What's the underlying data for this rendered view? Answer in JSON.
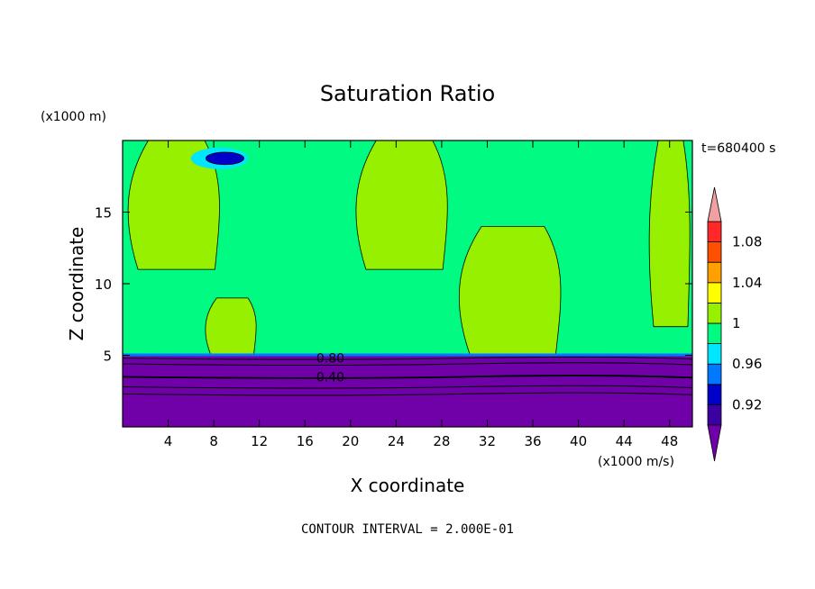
{
  "chart_data": {
    "type": "heatmap",
    "title": "Saturation Ratio",
    "xlabel": "X coordinate",
    "ylabel": "Z coordinate",
    "x_unit": "(x1000 m/s)",
    "y_unit": "(x1000 m)",
    "time_label": "t=680400 s",
    "footer": "CONTOUR INTERVAL = 2.000E-01",
    "xlim": [
      0,
      50
    ],
    "ylim": [
      0,
      20
    ],
    "x_ticks": [
      4,
      8,
      12,
      16,
      20,
      24,
      28,
      32,
      36,
      40,
      44,
      48
    ],
    "y_ticks": [
      5,
      10,
      15
    ],
    "boundary_layer_top": 5.0,
    "contour_labels": [
      {
        "text": "0.80",
        "x": 17.0,
        "y": 4.8
      },
      {
        "text": "0.40",
        "x": 17.0,
        "y": 3.5
      }
    ],
    "colorbar": {
      "labels": [
        "1.08",
        "1.04",
        "1",
        "0.96",
        "0.92"
      ],
      "levels": [
        {
          "range": "< 0.90",
          "color": "#7000a8"
        },
        {
          "range": "0.90-0.92",
          "color": "#3c00a0"
        },
        {
          "range": "0.92-0.94",
          "color": "#0000c8"
        },
        {
          "range": "0.94-0.96",
          "color": "#0078ff"
        },
        {
          "range": "0.96-0.98",
          "color": "#00e6ff"
        },
        {
          "range": "0.98-1.00",
          "color": "#00fa82"
        },
        {
          "range": "1.00-1.02",
          "color": "#96f000"
        },
        {
          "range": "1.02-1.04",
          "color": "#ffff00"
        },
        {
          "range": "1.04-1.06",
          "color": "#ffa000"
        },
        {
          "range": "1.06-1.08",
          "color": "#ff5000"
        },
        {
          "range": "1.08-1.10",
          "color": "#ff2828"
        },
        {
          "range": "> 1.10",
          "color": "#f0a0a0"
        }
      ]
    },
    "regions": [
      {
        "name": "subsaturated-boundary-layer",
        "x": [
          0,
          50
        ],
        "y": [
          0,
          5
        ],
        "value": "< 0.90",
        "color": "#7000a8"
      },
      {
        "name": "near-saturation-background",
        "x": [
          0,
          50
        ],
        "y": [
          5,
          20
        ],
        "value": "0.98-1.00",
        "color": "#00fa82"
      },
      {
        "name": "supersaturated-column-1",
        "x": [
          0,
          9
        ],
        "y": [
          11,
          20
        ],
        "value": "1.00-1.02",
        "color": "#96f000"
      },
      {
        "name": "supersaturated-column-2",
        "x": [
          7,
          12
        ],
        "y": [
          5,
          9
        ],
        "value": "1.00-1.02",
        "color": "#96f000"
      },
      {
        "name": "supersaturated-column-3",
        "x": [
          20,
          29
        ],
        "y": [
          11,
          20
        ],
        "value": "1.00-1.02",
        "color": "#96f000"
      },
      {
        "name": "supersaturated-column-4",
        "x": [
          29,
          39
        ],
        "y": [
          5,
          14
        ],
        "value": "1.00-1.02",
        "color": "#96f000"
      },
      {
        "name": "supersaturated-column-5",
        "x": [
          46,
          50
        ],
        "y": [
          7,
          20
        ],
        "value": "1.00-1.02",
        "color": "#96f000"
      },
      {
        "name": "dry-patch-top-left",
        "x": [
          6,
          11
        ],
        "y": [
          18,
          19.5
        ],
        "value": "0.90-0.94",
        "color": "#0000c8"
      }
    ]
  }
}
